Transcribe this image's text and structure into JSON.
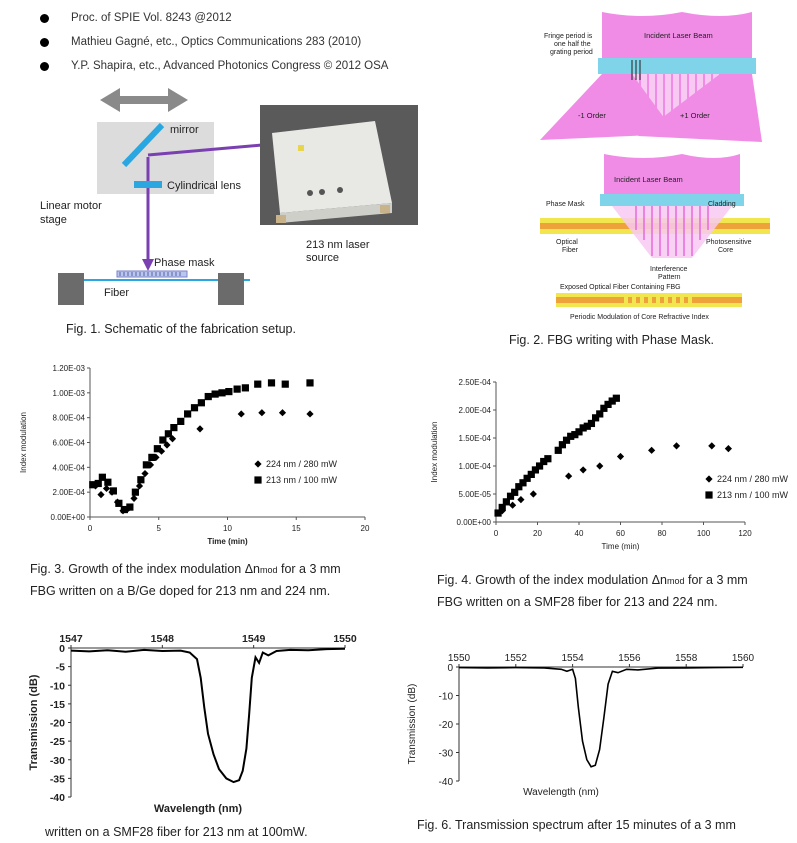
{
  "references": [
    "Proc. of SPIE Vol. 8243 @2012",
    "Mathieu Gagné, etc., Optics Communications 283 (2010)",
    "Y.P. Shapira, etc., Advanced Photonics Congress © 2012 OSA"
  ],
  "fig1": {
    "caption": "Fig. 1. Schematic of the fabrication setup.",
    "labels": {
      "mirror": "mirror",
      "cyl_lens": "Cylindrical lens",
      "stage_1": "Linear motor",
      "stage_2": "stage",
      "phase_mask": "Phase mask",
      "fiber": "Fiber",
      "laser_1": "213 nm laser",
      "laser_2": "source"
    }
  },
  "fig2": {
    "caption": "Fig. 2. FBG writing with Phase Mask.",
    "labels": {
      "fringe_1": "Fringe period is",
      "fringe_2": "one half the",
      "fringe_3": "grating period",
      "incident_top": "Incident Laser Beam",
      "minus_order": "-1 Order",
      "plus_order": "+1 Order",
      "incident_bottom": "Incident Laser Beam",
      "phase_mask": "Phase Mask",
      "cladding": "Cladding",
      "optical_1": "Optical",
      "optical_2": "Fiber",
      "photo_1": "Photosensitive",
      "photo_2": "Core",
      "interf_1": "Interference",
      "interf_2": "Pattern",
      "exposed": "Exposed Optical Fiber Containing FBG",
      "periodic": "Periodic Modulation of Core Refractive Index"
    }
  },
  "fig3": {
    "caption_1": "Fig. 3. Growth of the index modulation Δn",
    "caption_sub": "mod",
    "caption_2": " for a 3 mm",
    "caption_3": "FBG written on a B/Ge doped for 213 nm and 224 nm."
  },
  "fig4": {
    "caption_1": "Fig. 4. Growth of the index modulation Δn",
    "caption_sub": "mod",
    "caption_2": " for a 3 mm",
    "caption_3": "FBG written on a SMF28 fiber for 213 and 224 nm."
  },
  "fig5": {
    "caption_fragment": "written on a SMF28 fiber for 213 nm at 100mW."
  },
  "fig6": {
    "caption": "Fig. 6. Transmission spectrum after 15 minutes of a 3 mm"
  },
  "chart_data": [
    {
      "type": "scatter",
      "xlabel": "Time (min)",
      "ylabel": "Index modulation",
      "xlim": [
        0,
        20
      ],
      "ylim": [
        0,
        0.0012
      ],
      "xticks": [
        "0",
        "5",
        "10",
        "15",
        "20"
      ],
      "yticks": [
        "0.00E+00",
        "2.00E-04",
        "4.00E-04",
        "6.00E-04",
        "8.00E-04",
        "1.00E-03",
        "1.20E-03"
      ],
      "legend_position": "right",
      "series": [
        {
          "name": "224 nm / 280 mW",
          "marker": "diamond",
          "x": [
            0.4,
            0.8,
            1.2,
            1.6,
            2.0,
            2.4,
            2.8,
            3.2,
            3.6,
            4.0,
            4.4,
            4.8,
            5.2,
            5.6,
            6.0,
            8.0,
            11.0,
            12.5,
            14.0,
            16.0
          ],
          "y": [
            0.00025,
            0.00018,
            0.00023,
            0.0002,
            0.00012,
            5e-05,
            7e-05,
            0.00015,
            0.00025,
            0.00035,
            0.00042,
            0.00048,
            0.00053,
            0.00058,
            0.00063,
            0.00071,
            0.00083,
            0.00084,
            0.00084,
            0.00083
          ]
        },
        {
          "name": "213 nm / 100 mW",
          "marker": "square",
          "x": [
            0.2,
            0.6,
            0.9,
            1.3,
            1.7,
            2.1,
            2.5,
            2.9,
            3.3,
            3.7,
            4.1,
            4.5,
            4.9,
            5.3,
            5.7,
            6.1,
            6.6,
            7.1,
            7.6,
            8.1,
            8.6,
            9.1,
            9.6,
            10.1,
            10.7,
            11.3,
            12.2,
            13.2,
            14.2,
            16.0
          ],
          "y": [
            0.00026,
            0.00027,
            0.00032,
            0.00028,
            0.00021,
            0.00011,
            6e-05,
            8e-05,
            0.0002,
            0.0003,
            0.00042,
            0.00048,
            0.00055,
            0.00062,
            0.00067,
            0.00072,
            0.00077,
            0.00083,
            0.00088,
            0.00092,
            0.00097,
            0.00099,
            0.001,
            0.00101,
            0.00103,
            0.00104,
            0.00107,
            0.00108,
            0.00107,
            0.00108
          ]
        }
      ]
    },
    {
      "type": "scatter",
      "xlabel": "Time (min)",
      "ylabel": "Index modulation",
      "xlim": [
        0,
        120
      ],
      "ylim": [
        0,
        0.00025
      ],
      "xticks": [
        "0",
        "20",
        "40",
        "60",
        "80",
        "100",
        "120"
      ],
      "yticks": [
        "0.00E+00",
        "5.00E-05",
        "1.00E-04",
        "1.50E-04",
        "2.00E-04",
        "2.50E-04"
      ],
      "legend_position": "right",
      "series": [
        {
          "name": "224 nm / 280 mW",
          "marker": "diamond",
          "x": [
            3,
            8,
            12,
            18,
            35,
            42,
            50,
            60,
            75,
            87,
            104,
            112
          ],
          "y": [
            2e-05,
            3e-05,
            4e-05,
            5e-05,
            8.2e-05,
            9.3e-05,
            0.0001,
            0.000117,
            0.000128,
            0.000136,
            0.000136,
            0.000131
          ]
        },
        {
          "name": "213 nm / 100 mW",
          "marker": "square",
          "x": [
            1,
            3,
            5,
            7,
            9,
            11,
            13,
            15,
            17,
            19,
            21,
            23,
            25,
            30,
            32,
            34,
            36,
            38,
            40,
            42,
            44,
            46,
            48,
            50,
            52,
            54,
            56,
            58
          ],
          "y": [
            1.6e-05,
            2.6e-05,
            3.6e-05,
            4.6e-05,
            5.3e-05,
            6.3e-05,
            7e-05,
            7.8e-05,
            8.5e-05,
            9.3e-05,
            0.0001,
            0.000108,
            0.000113,
            0.000128,
            0.000138,
            0.000146,
            0.000153,
            0.000156,
            0.000161,
            0.000168,
            0.000171,
            0.000176,
            0.000186,
            0.000193,
            0.000203,
            0.00021,
            0.000216,
            0.000221
          ]
        }
      ]
    },
    {
      "type": "line",
      "xlabel": "Wavelength (nm)",
      "ylabel": "Transmission (dB)",
      "xlim": [
        1547,
        1550
      ],
      "ylim": [
        -40,
        0
      ],
      "x_axis_position": "top",
      "xticks": [
        "1547",
        "1548",
        "1549",
        "1550"
      ],
      "yticks": [
        "0",
        "-5",
        "-10",
        "-15",
        "-20",
        "-25",
        "-30",
        "-35",
        "-40"
      ],
      "series": [
        {
          "x": [
            1547,
            1547.2,
            1547.4,
            1547.6,
            1547.8,
            1548.0,
            1548.2,
            1548.3,
            1548.38,
            1548.42,
            1548.46,
            1548.5,
            1548.56,
            1548.62,
            1548.7,
            1548.78,
            1548.84,
            1548.88,
            1548.92,
            1548.95,
            1548.98,
            1549.02,
            1549.06,
            1549.1,
            1549.16,
            1549.25,
            1549.4,
            1549.6,
            1549.8,
            1550
          ],
          "y": [
            -0.7,
            -0.9,
            -0.6,
            -1.0,
            -0.5,
            -0.8,
            -0.7,
            -1.2,
            -3.0,
            -8.0,
            -16.0,
            -23.0,
            -28.5,
            -32.5,
            -35.0,
            -36.0,
            -35.5,
            -33.0,
            -27.0,
            -18.0,
            -8.0,
            -2.5,
            -4.0,
            -1.2,
            -2.0,
            -0.8,
            -0.5,
            -0.6,
            -0.3,
            -0.2
          ]
        }
      ]
    },
    {
      "type": "line",
      "xlabel": "Wavelength (nm)",
      "ylabel": "Transmission (dB)",
      "xlim": [
        1550,
        1560
      ],
      "ylim": [
        -40,
        0
      ],
      "x_axis_position": "top",
      "xticks": [
        "1550",
        "1552",
        "1554",
        "1556",
        "1558",
        "1560"
      ],
      "yticks": [
        "0",
        "-10",
        "-20",
        "-30",
        "-40"
      ],
      "series": [
        {
          "x": [
            1550,
            1551,
            1552,
            1553,
            1553.6,
            1553.8,
            1554.0,
            1554.1,
            1554.2,
            1554.35,
            1554.5,
            1554.65,
            1554.8,
            1554.95,
            1555.1,
            1555.25,
            1555.4,
            1555.6,
            1555.9,
            1556.3,
            1557,
            1558,
            1559,
            1560
          ],
          "y": [
            -0.2,
            -0.3,
            -0.2,
            -0.3,
            -0.8,
            -1.5,
            -0.8,
            -4.0,
            -14.0,
            -26.0,
            -32.5,
            -35.0,
            -34.5,
            -29.0,
            -18.0,
            -6.0,
            -1.5,
            -2.0,
            -0.8,
            -1.0,
            -0.4,
            -0.3,
            -0.2,
            -0.1
          ]
        }
      ]
    }
  ]
}
